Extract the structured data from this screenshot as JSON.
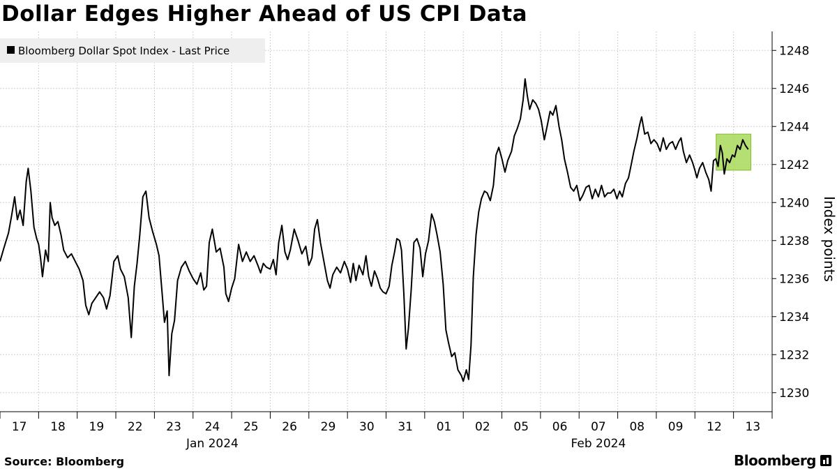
{
  "chart_data": {
    "type": "line",
    "title": "Dollar Edges Higher Ahead of US CPI Data",
    "legend": {
      "label": "Bloomberg Dollar Spot Index - Last Price",
      "color": "#000000",
      "placement": "top-left"
    },
    "ylabel": "Index points",
    "ylim": [
      1229,
      1249
    ],
    "yticks": [
      1230,
      1232,
      1234,
      1236,
      1238,
      1240,
      1242,
      1244,
      1246,
      1248
    ],
    "grid": true,
    "days": [
      "17",
      "18",
      "19",
      "22",
      "23",
      "24",
      "25",
      "26",
      "29",
      "30",
      "31",
      "01",
      "02",
      "05",
      "06",
      "07",
      "08",
      "09",
      "12",
      "13"
    ],
    "months": [
      {
        "label": "Jan 2024",
        "start_day": 0,
        "end_day": 10
      },
      {
        "label": "Feb 2024",
        "start_day": 11,
        "end_day": 19
      }
    ],
    "series": [
      {
        "name": "Bloomberg Dollar Spot Index - Last Price",
        "color": "#000000",
        "points": [
          [
            0.0,
            1236.9
          ],
          [
            0.1,
            1237.6
          ],
          [
            0.22,
            1238.4
          ],
          [
            0.3,
            1239.3
          ],
          [
            0.38,
            1240.3
          ],
          [
            0.45,
            1239.1
          ],
          [
            0.52,
            1239.6
          ],
          [
            0.6,
            1238.8
          ],
          [
            0.68,
            1241.1
          ],
          [
            0.73,
            1241.8
          ],
          [
            0.8,
            1240.6
          ],
          [
            0.88,
            1238.7
          ],
          [
            0.95,
            1238.1
          ],
          [
            1.0,
            1237.8
          ],
          [
            1.05,
            1237.1
          ],
          [
            1.1,
            1236.1
          ],
          [
            1.18,
            1237.5
          ],
          [
            1.25,
            1236.9
          ],
          [
            1.3,
            1240.0
          ],
          [
            1.35,
            1239.2
          ],
          [
            1.42,
            1238.8
          ],
          [
            1.5,
            1239.0
          ],
          [
            1.58,
            1238.3
          ],
          [
            1.65,
            1237.5
          ],
          [
            1.75,
            1237.1
          ],
          [
            1.85,
            1237.3
          ],
          [
            1.95,
            1236.9
          ],
          [
            2.05,
            1236.5
          ],
          [
            2.15,
            1235.9
          ],
          [
            2.22,
            1234.6
          ],
          [
            2.3,
            1234.1
          ],
          [
            2.38,
            1234.7
          ],
          [
            2.48,
            1235.0
          ],
          [
            2.58,
            1235.3
          ],
          [
            2.68,
            1235.0
          ],
          [
            2.76,
            1234.4
          ],
          [
            2.85,
            1235.1
          ],
          [
            2.95,
            1236.9
          ],
          [
            3.05,
            1237.2
          ],
          [
            3.12,
            1236.5
          ],
          [
            3.22,
            1236.1
          ],
          [
            3.32,
            1235.0
          ],
          [
            3.4,
            1232.9
          ],
          [
            3.48,
            1235.6
          ],
          [
            3.55,
            1236.8
          ],
          [
            3.62,
            1238.3
          ],
          [
            3.7,
            1240.3
          ],
          [
            3.78,
            1240.6
          ],
          [
            3.86,
            1239.2
          ],
          [
            3.95,
            1238.5
          ],
          [
            4.05,
            1237.8
          ],
          [
            4.12,
            1237.2
          ],
          [
            4.2,
            1235.2
          ],
          [
            4.26,
            1233.7
          ],
          [
            4.33,
            1234.3
          ],
          [
            4.38,
            1230.9
          ],
          [
            4.45,
            1233.1
          ],
          [
            4.52,
            1233.8
          ],
          [
            4.6,
            1235.9
          ],
          [
            4.7,
            1236.6
          ],
          [
            4.8,
            1236.9
          ],
          [
            4.9,
            1236.4
          ],
          [
            5.0,
            1236.0
          ],
          [
            5.1,
            1235.7
          ],
          [
            5.2,
            1236.3
          ],
          [
            5.28,
            1235.4
          ],
          [
            5.35,
            1235.6
          ],
          [
            5.42,
            1237.9
          ],
          [
            5.5,
            1238.6
          ],
          [
            5.6,
            1237.4
          ],
          [
            5.7,
            1237.6
          ],
          [
            5.8,
            1236.6
          ],
          [
            5.85,
            1235.2
          ],
          [
            5.92,
            1234.8
          ],
          [
            6.0,
            1235.5
          ],
          [
            6.08,
            1236.0
          ],
          [
            6.18,
            1237.8
          ],
          [
            6.28,
            1236.9
          ],
          [
            6.38,
            1237.4
          ],
          [
            6.48,
            1236.9
          ],
          [
            6.58,
            1237.2
          ],
          [
            6.68,
            1236.7
          ],
          [
            6.75,
            1236.3
          ],
          [
            6.82,
            1236.8
          ],
          [
            6.9,
            1236.6
          ],
          [
            7.0,
            1236.5
          ],
          [
            7.08,
            1237.0
          ],
          [
            7.15,
            1236.2
          ],
          [
            7.22,
            1237.9
          ],
          [
            7.3,
            1238.8
          ],
          [
            7.38,
            1237.4
          ],
          [
            7.45,
            1237.0
          ],
          [
            7.52,
            1237.5
          ],
          [
            7.62,
            1238.6
          ],
          [
            7.72,
            1238.0
          ],
          [
            7.82,
            1237.3
          ],
          [
            7.92,
            1237.7
          ],
          [
            8.0,
            1236.7
          ],
          [
            8.08,
            1237.1
          ],
          [
            8.15,
            1238.6
          ],
          [
            8.22,
            1239.1
          ],
          [
            8.3,
            1237.9
          ],
          [
            8.4,
            1236.8
          ],
          [
            8.48,
            1235.9
          ],
          [
            8.55,
            1235.5
          ],
          [
            8.62,
            1236.2
          ],
          [
            8.72,
            1236.6
          ],
          [
            8.82,
            1236.3
          ],
          [
            8.92,
            1236.9
          ],
          [
            9.0,
            1236.5
          ],
          [
            9.08,
            1235.8
          ],
          [
            9.15,
            1236.8
          ],
          [
            9.22,
            1235.9
          ],
          [
            9.3,
            1236.7
          ],
          [
            9.4,
            1236.2
          ],
          [
            9.48,
            1237.2
          ],
          [
            9.55,
            1236.1
          ],
          [
            9.62,
            1235.6
          ],
          [
            9.7,
            1236.4
          ],
          [
            9.78,
            1236.0
          ],
          [
            9.85,
            1235.5
          ],
          [
            9.92,
            1235.3
          ],
          [
            10.0,
            1235.2
          ],
          [
            10.08,
            1235.6
          ],
          [
            10.15,
            1236.7
          ],
          [
            10.22,
            1237.4
          ],
          [
            10.28,
            1238.1
          ],
          [
            10.35,
            1238.0
          ],
          [
            10.4,
            1237.5
          ],
          [
            10.46,
            1235.2
          ],
          [
            10.52,
            1232.3
          ],
          [
            10.58,
            1233.4
          ],
          [
            10.65,
            1235.4
          ],
          [
            10.72,
            1237.9
          ],
          [
            10.8,
            1238.1
          ],
          [
            10.88,
            1237.6
          ],
          [
            10.95,
            1236.1
          ],
          [
            11.02,
            1237.3
          ],
          [
            11.1,
            1238.0
          ],
          [
            11.18,
            1239.4
          ],
          [
            11.25,
            1239.0
          ],
          [
            11.32,
            1238.3
          ],
          [
            11.4,
            1237.4
          ],
          [
            11.48,
            1235.7
          ],
          [
            11.55,
            1233.3
          ],
          [
            11.62,
            1232.6
          ],
          [
            11.7,
            1231.9
          ],
          [
            11.78,
            1232.1
          ],
          [
            11.86,
            1231.2
          ],
          [
            11.95,
            1230.9
          ],
          [
            12.0,
            1230.6
          ],
          [
            12.08,
            1231.2
          ],
          [
            12.14,
            1230.7
          ],
          [
            12.2,
            1232.5
          ],
          [
            12.26,
            1236.1
          ],
          [
            12.33,
            1238.3
          ],
          [
            12.4,
            1239.5
          ],
          [
            12.47,
            1240.2
          ],
          [
            12.55,
            1240.6
          ],
          [
            12.62,
            1240.5
          ],
          [
            12.7,
            1240.1
          ],
          [
            12.78,
            1240.9
          ],
          [
            12.85,
            1242.5
          ],
          [
            12.92,
            1242.9
          ],
          [
            13.0,
            1242.3
          ],
          [
            13.08,
            1241.6
          ],
          [
            13.15,
            1242.2
          ],
          [
            13.25,
            1242.7
          ],
          [
            13.32,
            1243.5
          ],
          [
            13.4,
            1243.9
          ],
          [
            13.48,
            1244.4
          ],
          [
            13.55,
            1245.4
          ],
          [
            13.6,
            1246.5
          ],
          [
            13.66,
            1245.6
          ],
          [
            13.72,
            1244.9
          ],
          [
            13.8,
            1245.4
          ],
          [
            13.88,
            1245.2
          ],
          [
            13.95,
            1244.9
          ],
          [
            14.02,
            1244.3
          ],
          [
            14.1,
            1243.3
          ],
          [
            14.18,
            1244.1
          ],
          [
            14.25,
            1244.8
          ],
          [
            14.32,
            1244.6
          ],
          [
            14.4,
            1245.1
          ],
          [
            14.48,
            1244.0
          ],
          [
            14.55,
            1243.3
          ],
          [
            14.62,
            1242.3
          ],
          [
            14.7,
            1241.6
          ],
          [
            14.78,
            1240.8
          ],
          [
            14.86,
            1240.6
          ],
          [
            14.94,
            1240.9
          ],
          [
            15.02,
            1240.1
          ],
          [
            15.1,
            1240.4
          ],
          [
            15.18,
            1240.8
          ],
          [
            15.26,
            1240.9
          ],
          [
            15.34,
            1240.2
          ],
          [
            15.42,
            1240.7
          ],
          [
            15.5,
            1240.3
          ],
          [
            15.58,
            1240.9
          ],
          [
            15.66,
            1240.3
          ],
          [
            15.74,
            1240.5
          ],
          [
            15.82,
            1240.5
          ],
          [
            15.9,
            1240.7
          ],
          [
            15.98,
            1240.2
          ],
          [
            16.05,
            1240.6
          ],
          [
            16.12,
            1240.3
          ],
          [
            16.2,
            1241.0
          ],
          [
            16.28,
            1241.3
          ],
          [
            16.35,
            1242.0
          ],
          [
            16.42,
            1242.7
          ],
          [
            16.5,
            1243.4
          ],
          [
            16.57,
            1244.1
          ],
          [
            16.62,
            1244.5
          ],
          [
            16.7,
            1243.6
          ],
          [
            16.78,
            1243.7
          ],
          [
            16.86,
            1243.1
          ],
          [
            16.94,
            1243.3
          ],
          [
            17.02,
            1243.1
          ],
          [
            17.1,
            1242.7
          ],
          [
            17.18,
            1243.4
          ],
          [
            17.26,
            1242.8
          ],
          [
            17.34,
            1243.1
          ],
          [
            17.42,
            1243.2
          ],
          [
            17.5,
            1242.8
          ],
          [
            17.58,
            1243.2
          ],
          [
            17.64,
            1243.4
          ],
          [
            17.7,
            1242.7
          ],
          [
            17.78,
            1242.1
          ],
          [
            17.86,
            1242.5
          ],
          [
            17.94,
            1242.1
          ],
          [
            18.0,
            1241.7
          ],
          [
            18.05,
            1241.3
          ],
          [
            18.12,
            1241.8
          ],
          [
            18.2,
            1242.1
          ],
          [
            18.28,
            1241.6
          ],
          [
            18.36,
            1241.2
          ],
          [
            18.42,
            1240.6
          ],
          [
            18.48,
            1242.2
          ],
          [
            18.54,
            1242.3
          ],
          [
            18.6,
            1241.9
          ],
          [
            18.66,
            1243.0
          ],
          [
            18.71,
            1242.6
          ],
          [
            18.76,
            1241.5
          ],
          [
            18.83,
            1242.3
          ],
          [
            18.9,
            1242.1
          ],
          [
            18.97,
            1242.5
          ],
          [
            19.03,
            1242.4
          ],
          [
            19.1,
            1243.0
          ],
          [
            19.17,
            1242.8
          ],
          [
            19.24,
            1243.3
          ],
          [
            19.31,
            1243.0
          ],
          [
            19.38,
            1242.8
          ]
        ]
      }
    ],
    "highlight": {
      "x": [
        18.55,
        19.45
      ],
      "y": [
        1241.7,
        1243.6
      ],
      "color": "#a8d95a"
    }
  },
  "footer": {
    "source": "Source: Bloomberg",
    "brand": "Bloomberg"
  }
}
